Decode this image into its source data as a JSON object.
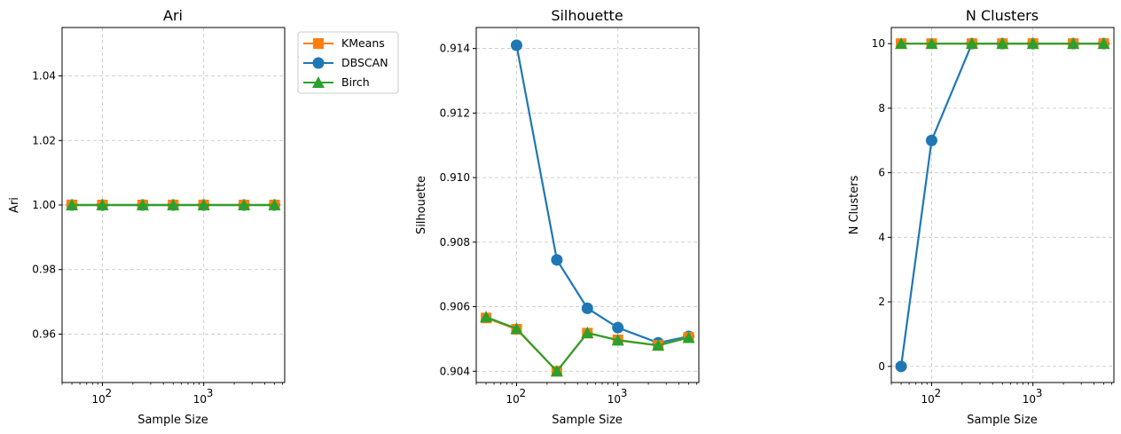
{
  "chart_data": [
    {
      "type": "line",
      "title": "Ari",
      "xlabel": "Sample Size",
      "ylabel": "Ari",
      "xscale": "log",
      "x": [
        50,
        100,
        250,
        500,
        1000,
        2500,
        5000
      ],
      "xlim": [
        40,
        6300
      ],
      "ylim": [
        0.945,
        1.055
      ],
      "yticks": [
        0.96,
        0.98,
        1.0,
        1.02,
        1.04
      ],
      "ytick_labels": [
        "0.96",
        "0.98",
        "1.00",
        "1.02",
        "1.04"
      ],
      "xticks": [
        100,
        1000
      ],
      "xtick_labels": [
        "10",
        "10"
      ],
      "xtick_exponents": [
        "2",
        "3"
      ],
      "grid": true,
      "series": [
        {
          "name": "KMeans",
          "color": "#ff7f0e",
          "marker": "square",
          "values": [
            1.0,
            1.0,
            1.0,
            1.0,
            1.0,
            1.0,
            1.0
          ]
        },
        {
          "name": "DBSCAN",
          "color": "#1f77b4",
          "marker": "circle",
          "values": [
            1.0,
            1.0,
            1.0,
            1.0,
            1.0,
            1.0,
            1.0
          ]
        },
        {
          "name": "Birch",
          "color": "#2ca02c",
          "marker": "triangle",
          "values": [
            1.0,
            1.0,
            1.0,
            1.0,
            1.0,
            1.0,
            1.0
          ]
        }
      ]
    },
    {
      "type": "line",
      "title": "Silhouette",
      "xlabel": "Sample Size",
      "ylabel": "Silhouette",
      "xscale": "log",
      "x": [
        50,
        100,
        250,
        500,
        1000,
        2500,
        5000
      ],
      "xlim": [
        40,
        6300
      ],
      "ylim": [
        0.90365,
        0.91465
      ],
      "yticks": [
        0.904,
        0.906,
        0.908,
        0.91,
        0.912,
        0.914
      ],
      "ytick_labels": [
        "0.904",
        "0.906",
        "0.908",
        "0.910",
        "0.912",
        "0.914"
      ],
      "xticks": [
        100,
        1000
      ],
      "xtick_labels": [
        "10",
        "10"
      ],
      "xtick_exponents": [
        "2",
        "3"
      ],
      "grid": true,
      "series": [
        {
          "name": "KMeans",
          "color": "#ff7f0e",
          "marker": "square",
          "values": [
            0.90565,
            0.9053,
            0.904,
            0.90518,
            0.90497,
            0.9048,
            0.90505
          ]
        },
        {
          "name": "DBSCAN",
          "color": "#1f77b4",
          "marker": "circle",
          "values": [
            null,
            0.9141,
            0.90745,
            0.90595,
            0.90535,
            0.90488,
            0.90508
          ]
        },
        {
          "name": "Birch",
          "color": "#2ca02c",
          "marker": "triangle",
          "values": [
            0.90568,
            0.90532,
            0.904,
            0.90519,
            0.90496,
            0.9048,
            0.90504
          ]
        }
      ]
    },
    {
      "type": "line",
      "title": "N Clusters",
      "xlabel": "Sample Size",
      "ylabel": "N Clusters",
      "xscale": "log",
      "x": [
        50,
        100,
        250,
        500,
        1000,
        2500,
        5000
      ],
      "xlim": [
        40,
        6300
      ],
      "ylim": [
        -0.5,
        10.5
      ],
      "yticks": [
        0,
        2,
        4,
        6,
        8,
        10
      ],
      "ytick_labels": [
        "0",
        "2",
        "4",
        "6",
        "8",
        "10"
      ],
      "xticks": [
        100,
        1000
      ],
      "xtick_labels": [
        "10",
        "10"
      ],
      "xtick_exponents": [
        "2",
        "3"
      ],
      "grid": true,
      "series": [
        {
          "name": "KMeans",
          "color": "#ff7f0e",
          "marker": "square",
          "values": [
            10,
            10,
            10,
            10,
            10,
            10,
            10
          ]
        },
        {
          "name": "DBSCAN",
          "color": "#1f77b4",
          "marker": "circle",
          "values": [
            0,
            7,
            10,
            10,
            10,
            10,
            10
          ]
        },
        {
          "name": "Birch",
          "color": "#2ca02c",
          "marker": "triangle",
          "values": [
            10,
            10,
            10,
            10,
            10,
            10,
            10
          ]
        }
      ]
    }
  ],
  "legend": {
    "placement": "right of first plot",
    "entries": [
      {
        "label": "KMeans",
        "color": "#ff7f0e",
        "marker": "square"
      },
      {
        "label": "DBSCAN",
        "color": "#1f77b4",
        "marker": "circle"
      },
      {
        "label": "Birch",
        "color": "#2ca02c",
        "marker": "triangle"
      }
    ]
  }
}
